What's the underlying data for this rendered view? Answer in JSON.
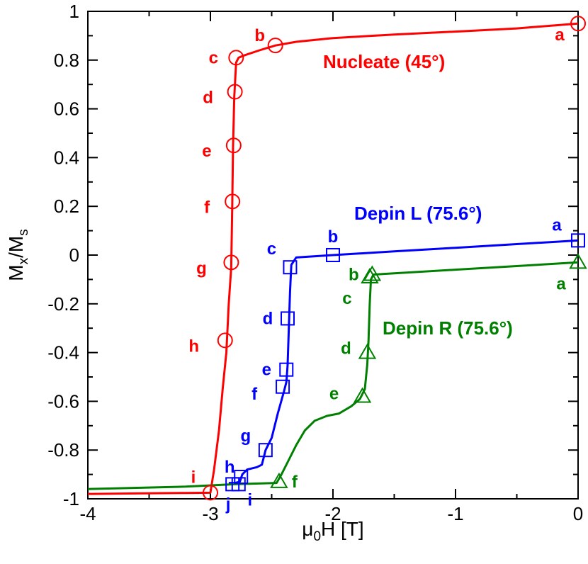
{
  "chart_data": {
    "type": "line",
    "xlim": [
      -4,
      0
    ],
    "ylim": [
      -1,
      1
    ],
    "x_ticks": [
      -4,
      -3,
      -2,
      -1,
      0
    ],
    "y_ticks": [
      -1,
      -0.8,
      -0.6,
      -0.4,
      -0.2,
      0,
      0.2,
      0.4,
      0.6,
      0.8,
      1
    ],
    "x_tick_labels": [
      "-4",
      "-3",
      "-2",
      "-1",
      "0"
    ],
    "y_tick_labels": [
      "-1",
      "-0.8",
      "-0.6",
      "-0.4",
      "-0.2",
      "0",
      "0.2",
      "0.4",
      "0.6",
      "0.8",
      "1"
    ],
    "xlabel": {
      "mu": "μ",
      "sub": "0",
      "rest": "H [T]"
    },
    "ylabel": {
      "main": "M",
      "sub1": "x",
      "mid": "/M",
      "sub2": "s"
    },
    "grid": false,
    "series": [
      {
        "name": "Nucleate (45°)",
        "color": "#ff0000",
        "marker": "circle",
        "curve": [
          [
            0,
            0.95
          ],
          [
            -0.5,
            0.93
          ],
          [
            -1.0,
            0.917
          ],
          [
            -1.5,
            0.905
          ],
          [
            -2.0,
            0.89
          ],
          [
            -2.3,
            0.875
          ],
          [
            -2.47,
            0.86
          ],
          [
            -2.6,
            0.84
          ],
          [
            -2.72,
            0.82
          ],
          [
            -2.77,
            0.81
          ],
          [
            -2.79,
            0.79
          ],
          [
            -2.805,
            0.65
          ],
          [
            -2.815,
            0.45
          ],
          [
            -2.822,
            0.2
          ],
          [
            -2.83,
            -0.05
          ],
          [
            -2.85,
            -0.2
          ],
          [
            -2.87,
            -0.4
          ],
          [
            -2.9,
            -0.55
          ],
          [
            -2.93,
            -0.72
          ],
          [
            -2.97,
            -0.88
          ],
          [
            -3.0,
            -0.975
          ],
          [
            -3.2,
            -0.976
          ],
          [
            -3.6,
            -0.978
          ],
          [
            -4.0,
            -0.98
          ]
        ],
        "points": [
          {
            "label": "a",
            "x": 0,
            "y": 0.95
          },
          {
            "label": "b",
            "x": -2.47,
            "y": 0.86
          },
          {
            "label": "c",
            "x": -2.79,
            "y": 0.81
          },
          {
            "label": "d",
            "x": -2.8,
            "y": 0.67
          },
          {
            "label": "e",
            "x": -2.81,
            "y": 0.45
          },
          {
            "label": "f",
            "x": -2.82,
            "y": 0.22
          },
          {
            "label": "g",
            "x": -2.83,
            "y": -0.03
          },
          {
            "label": "h",
            "x": -2.88,
            "y": -0.35
          },
          {
            "label": "i",
            "x": -3.0,
            "y": -0.975
          }
        ]
      },
      {
        "name": "Depin L (75.6°)",
        "color": "#0000ff",
        "marker": "square",
        "curve": [
          [
            0,
            0.06
          ],
          [
            -0.5,
            0.045
          ],
          [
            -1.0,
            0.03
          ],
          [
            -1.5,
            0.015
          ],
          [
            -2.0,
            0.0
          ],
          [
            -2.3,
            -0.01
          ],
          [
            -2.34,
            -0.04
          ],
          [
            -2.35,
            -0.15
          ],
          [
            -2.36,
            -0.3
          ],
          [
            -2.37,
            -0.45
          ],
          [
            -2.38,
            -0.52
          ],
          [
            -2.4,
            -0.56
          ],
          [
            -2.45,
            -0.65
          ],
          [
            -2.5,
            -0.75
          ],
          [
            -2.55,
            -0.8
          ],
          [
            -2.58,
            -0.86
          ],
          [
            -2.62,
            -0.87
          ],
          [
            -2.7,
            -0.88
          ],
          [
            -2.74,
            -0.9
          ],
          [
            -2.76,
            -0.93
          ],
          [
            -2.8,
            -0.935
          ],
          [
            -2.85,
            -0.935
          ]
        ],
        "points": [
          {
            "label": "a",
            "x": 0,
            "y": 0.06
          },
          {
            "label": "b",
            "x": -2.0,
            "y": 0.0
          },
          {
            "label": "c",
            "x": -2.35,
            "y": -0.05
          },
          {
            "label": "d",
            "x": -2.37,
            "y": -0.26
          },
          {
            "label": "e",
            "x": -2.38,
            "y": -0.47
          },
          {
            "label": "f",
            "x": -2.41,
            "y": -0.54
          },
          {
            "label": "g",
            "x": -2.55,
            "y": -0.8
          },
          {
            "label": "h",
            "x": -2.75,
            "y": -0.91
          },
          {
            "label": "i",
            "x": -2.77,
            "y": -0.94
          },
          {
            "label": "j",
            "x": -2.82,
            "y": -0.94
          }
        ]
      },
      {
        "name": "Depin R (75.6°)",
        "color": "#008000",
        "marker": "triangle",
        "curve": [
          [
            0,
            -0.03
          ],
          [
            -0.5,
            -0.045
          ],
          [
            -1.0,
            -0.06
          ],
          [
            -1.5,
            -0.075
          ],
          [
            -1.67,
            -0.08
          ],
          [
            -1.69,
            -0.1
          ],
          [
            -1.7,
            -0.2
          ],
          [
            -1.71,
            -0.35
          ],
          [
            -1.72,
            -0.45
          ],
          [
            -1.74,
            -0.55
          ],
          [
            -1.78,
            -0.59
          ],
          [
            -1.85,
            -0.62
          ],
          [
            -1.95,
            -0.65
          ],
          [
            -2.05,
            -0.66
          ],
          [
            -2.15,
            -0.68
          ],
          [
            -2.23,
            -0.72
          ],
          [
            -2.3,
            -0.78
          ],
          [
            -2.36,
            -0.84
          ],
          [
            -2.42,
            -0.9
          ],
          [
            -2.46,
            -0.935
          ],
          [
            -2.8,
            -0.94
          ],
          [
            -3.2,
            -0.95
          ],
          [
            -3.6,
            -0.955
          ],
          [
            -4.0,
            -0.96
          ]
        ],
        "points": [
          {
            "label": "a",
            "x": 0,
            "y": -0.03
          },
          {
            "label": "b",
            "x": -1.68,
            "y": -0.08
          },
          {
            "label": "c",
            "x": -1.7,
            "y": -0.09
          },
          {
            "label": "d",
            "x": -1.72,
            "y": -0.4
          },
          {
            "label": "e",
            "x": -1.76,
            "y": -0.58
          },
          {
            "label": "f",
            "x": -2.44,
            "y": -0.93
          }
        ]
      }
    ]
  }
}
